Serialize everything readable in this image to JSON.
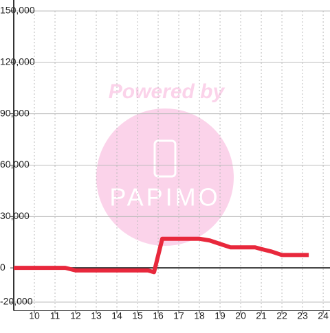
{
  "chart_data": {
    "type": "line",
    "x": [
      9,
      11.5,
      12,
      15.5,
      15.8,
      16.2,
      18,
      18.5,
      19,
      19.5,
      20.7,
      21,
      21.5,
      22,
      23.3
    ],
    "series": [
      {
        "color": "#e8283c",
        "values": [
          0,
          0,
          -1500,
          -1500,
          -2500,
          17000,
          17000,
          16000,
          14000,
          12000,
          12000,
          11000,
          9500,
          7500,
          7500
        ]
      }
    ],
    "xlim": [
      9,
      24.33
    ],
    "xticks": [
      10,
      11,
      12,
      13,
      14,
      15,
      16,
      17,
      18,
      19,
      20,
      21,
      22,
      23,
      24
    ],
    "ylim": [
      -25000,
      150000
    ],
    "yticks": [
      {
        "value": -20000,
        "label": "-20,000"
      },
      0,
      {
        "value": 30000,
        "label": "30,000"
      },
      {
        "value": 60000,
        "label": "60,000"
      },
      {
        "value": 90000,
        "label": "90,000"
      },
      {
        "value": 120000,
        "label": "120,000"
      },
      {
        "value": 150000,
        "label": "150,000"
      }
    ],
    "grid": true,
    "watermark": {
      "top": "Powered by",
      "brand": "PAPIMO"
    }
  }
}
